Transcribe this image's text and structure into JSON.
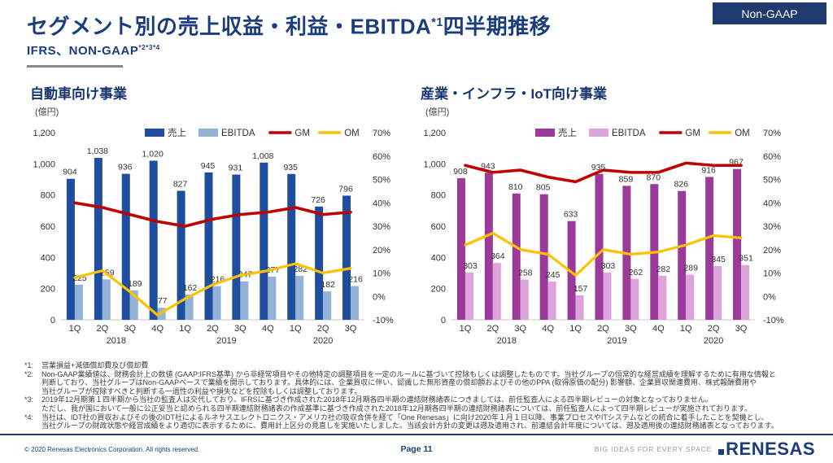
{
  "badge": {
    "label": "Non-GAAP"
  },
  "header": {
    "title_main": "セグメント別の売上収益・利益・EBITDA",
    "title_sup": "*1",
    "title_suffix": "四半期推移",
    "subtitle_main": "IFRS、NON-GAAP",
    "subtitle_sup": "*2*3*4"
  },
  "colors": {
    "navy": "#1b3c7d",
    "auto_revenue": "#1f4e9e",
    "auto_ebitda": "#94b1d8",
    "iiot_revenue": "#9b3a9b",
    "iiot_ebitda": "#dfa3dc",
    "gm_line": "#c00000",
    "om_line": "#ffc000"
  },
  "chart_data": [
    {
      "type": "bar",
      "title": "自動車向け事業",
      "unit_label": "(億円)",
      "categories": [
        "1Q",
        "2Q",
        "3Q",
        "4Q",
        "1Q",
        "2Q",
        "3Q",
        "4Q",
        "1Q",
        "2Q",
        "3Q"
      ],
      "year_groups": [
        {
          "label": "2018",
          "span": 4
        },
        {
          "label": "2019",
          "span": 4
        },
        {
          "label": "2020",
          "span": 3
        }
      ],
      "left_axis": {
        "min": 0,
        "max": 1200,
        "step": 200
      },
      "right_axis": {
        "min": -10,
        "max": 70,
        "step": 10,
        "suffix": "%"
      },
      "series": [
        {
          "name": "売上",
          "kind": "bar",
          "axis": "left",
          "color": "#1f4e9e",
          "values": [
            904,
            1038,
            936,
            1020,
            827,
            945,
            931,
            1008,
            935,
            726,
            796
          ]
        },
        {
          "name": "EBITDA",
          "kind": "bar",
          "axis": "left",
          "color": "#94b1d8",
          "values": [
            225,
            259,
            189,
            77,
            162,
            216,
            247,
            277,
            282,
            182,
            216
          ]
        },
        {
          "name": "GM",
          "kind": "line",
          "axis": "right",
          "color": "#c00000",
          "values": [
            40,
            38,
            35,
            32,
            30,
            33,
            35,
            36,
            38,
            35,
            36
          ]
        },
        {
          "name": "OM",
          "kind": "line",
          "axis": "right",
          "color": "#ffc000",
          "values": [
            8,
            11,
            2,
            -8,
            -1,
            5,
            9,
            11,
            14,
            10,
            12
          ]
        }
      ]
    },
    {
      "type": "bar",
      "title": "産業・インフラ・IoT向け事業",
      "unit_label": "(億円)",
      "categories": [
        "1Q",
        "2Q",
        "3Q",
        "4Q",
        "1Q",
        "2Q",
        "3Q",
        "4Q",
        "1Q",
        "2Q",
        "3Q"
      ],
      "year_groups": [
        {
          "label": "2018",
          "span": 4
        },
        {
          "label": "2019",
          "span": 4
        },
        {
          "label": "2020",
          "span": 3
        }
      ],
      "left_axis": {
        "min": 0,
        "max": 1200,
        "step": 200
      },
      "right_axis": {
        "min": -10,
        "max": 70,
        "step": 10,
        "suffix": "%"
      },
      "series": [
        {
          "name": "売上",
          "kind": "bar",
          "axis": "left",
          "color": "#9b3a9b",
          "values": [
            908,
            943,
            810,
            805,
            633,
            935,
            859,
            870,
            826,
            916,
            967
          ]
        },
        {
          "name": "EBITDA",
          "kind": "bar",
          "axis": "left",
          "color": "#dfa3dc",
          "values": [
            303,
            364,
            258,
            245,
            157,
            303,
            262,
            282,
            289,
            345,
            351
          ]
        },
        {
          "name": "GM",
          "kind": "line",
          "axis": "right",
          "color": "#c00000",
          "values": [
            56,
            53,
            54,
            51,
            49,
            54,
            53,
            53,
            57,
            56,
            56
          ]
        },
        {
          "name": "OM",
          "kind": "line",
          "axis": "right",
          "color": "#ffc000",
          "values": [
            22,
            27,
            20,
            18,
            9,
            20,
            18,
            19,
            22,
            26,
            25
          ]
        }
      ]
    }
  ],
  "footnotes": [
    {
      "label": "*1:",
      "lines": [
        "営業損益+減価償却費及び償却費"
      ]
    },
    {
      "label": "*2:",
      "lines": [
        "Non-GAAP業績値は、財務会計上の数値 (GAAP:IFRS基準) から非経常項目やその他特定の調整項目を一定のルールに基づいて控除もしくは調整したものです。当社グループの恒常的な経営成績を理解するために有用な情報と",
        "判断しており、当社グループはNon-GAAPベースで業績を開示しております。具体的には、企業買収に伴い、認識した無形資産の償却額およびその他のPPA (取得原価の配分) 影響額、企業買収関連費用、株式報酬費用や",
        "当社グループが控除すべきと判断する一過性の利益や損失などを控除もしくは調整しております。"
      ]
    },
    {
      "label": "*3:",
      "lines": [
        "2019年12月期第１四半期から当社の監査人は交代しており、IFRSに基づき作成された2018年12月期各四半期の連結財務諸表につきましては、前任監査人による四半期レビューの対象となっておりません。",
        "ただし、我が国において一般に公正妥当と認められる四半期連結財務諸表の作成基準に基づき作成された2018年12月期各四半期の連結財務諸表については、前任監査人によって四半期レビューが実施されております。"
      ]
    },
    {
      "label": "*4:",
      "lines": [
        "当社は、IDT社の買収およびその後のIDT社によるルネサスエレクトロニクス・アメリカ社の吸収合併を経て「One Renesas」に向け2020年１月１日以降、事業プロセスやITシステムなどの統合に着手したことを契機とし、",
        "当社グループの財政状態や経営成績をより適切に表示するために、費用計上区分の見直しを実施いたしました。当該会計方針の変更は遡及適用され、前連結会計年度については、遡及適用後の連結財務諸表となっております。"
      ]
    }
  ],
  "footer": {
    "copyright": "© 2020 Renesas Electronics Corporation. All rights reserved.",
    "page": "Page 11",
    "tagline": "BIG IDEAS FOR EVERY SPACE",
    "logo_text": "RENESAS"
  }
}
